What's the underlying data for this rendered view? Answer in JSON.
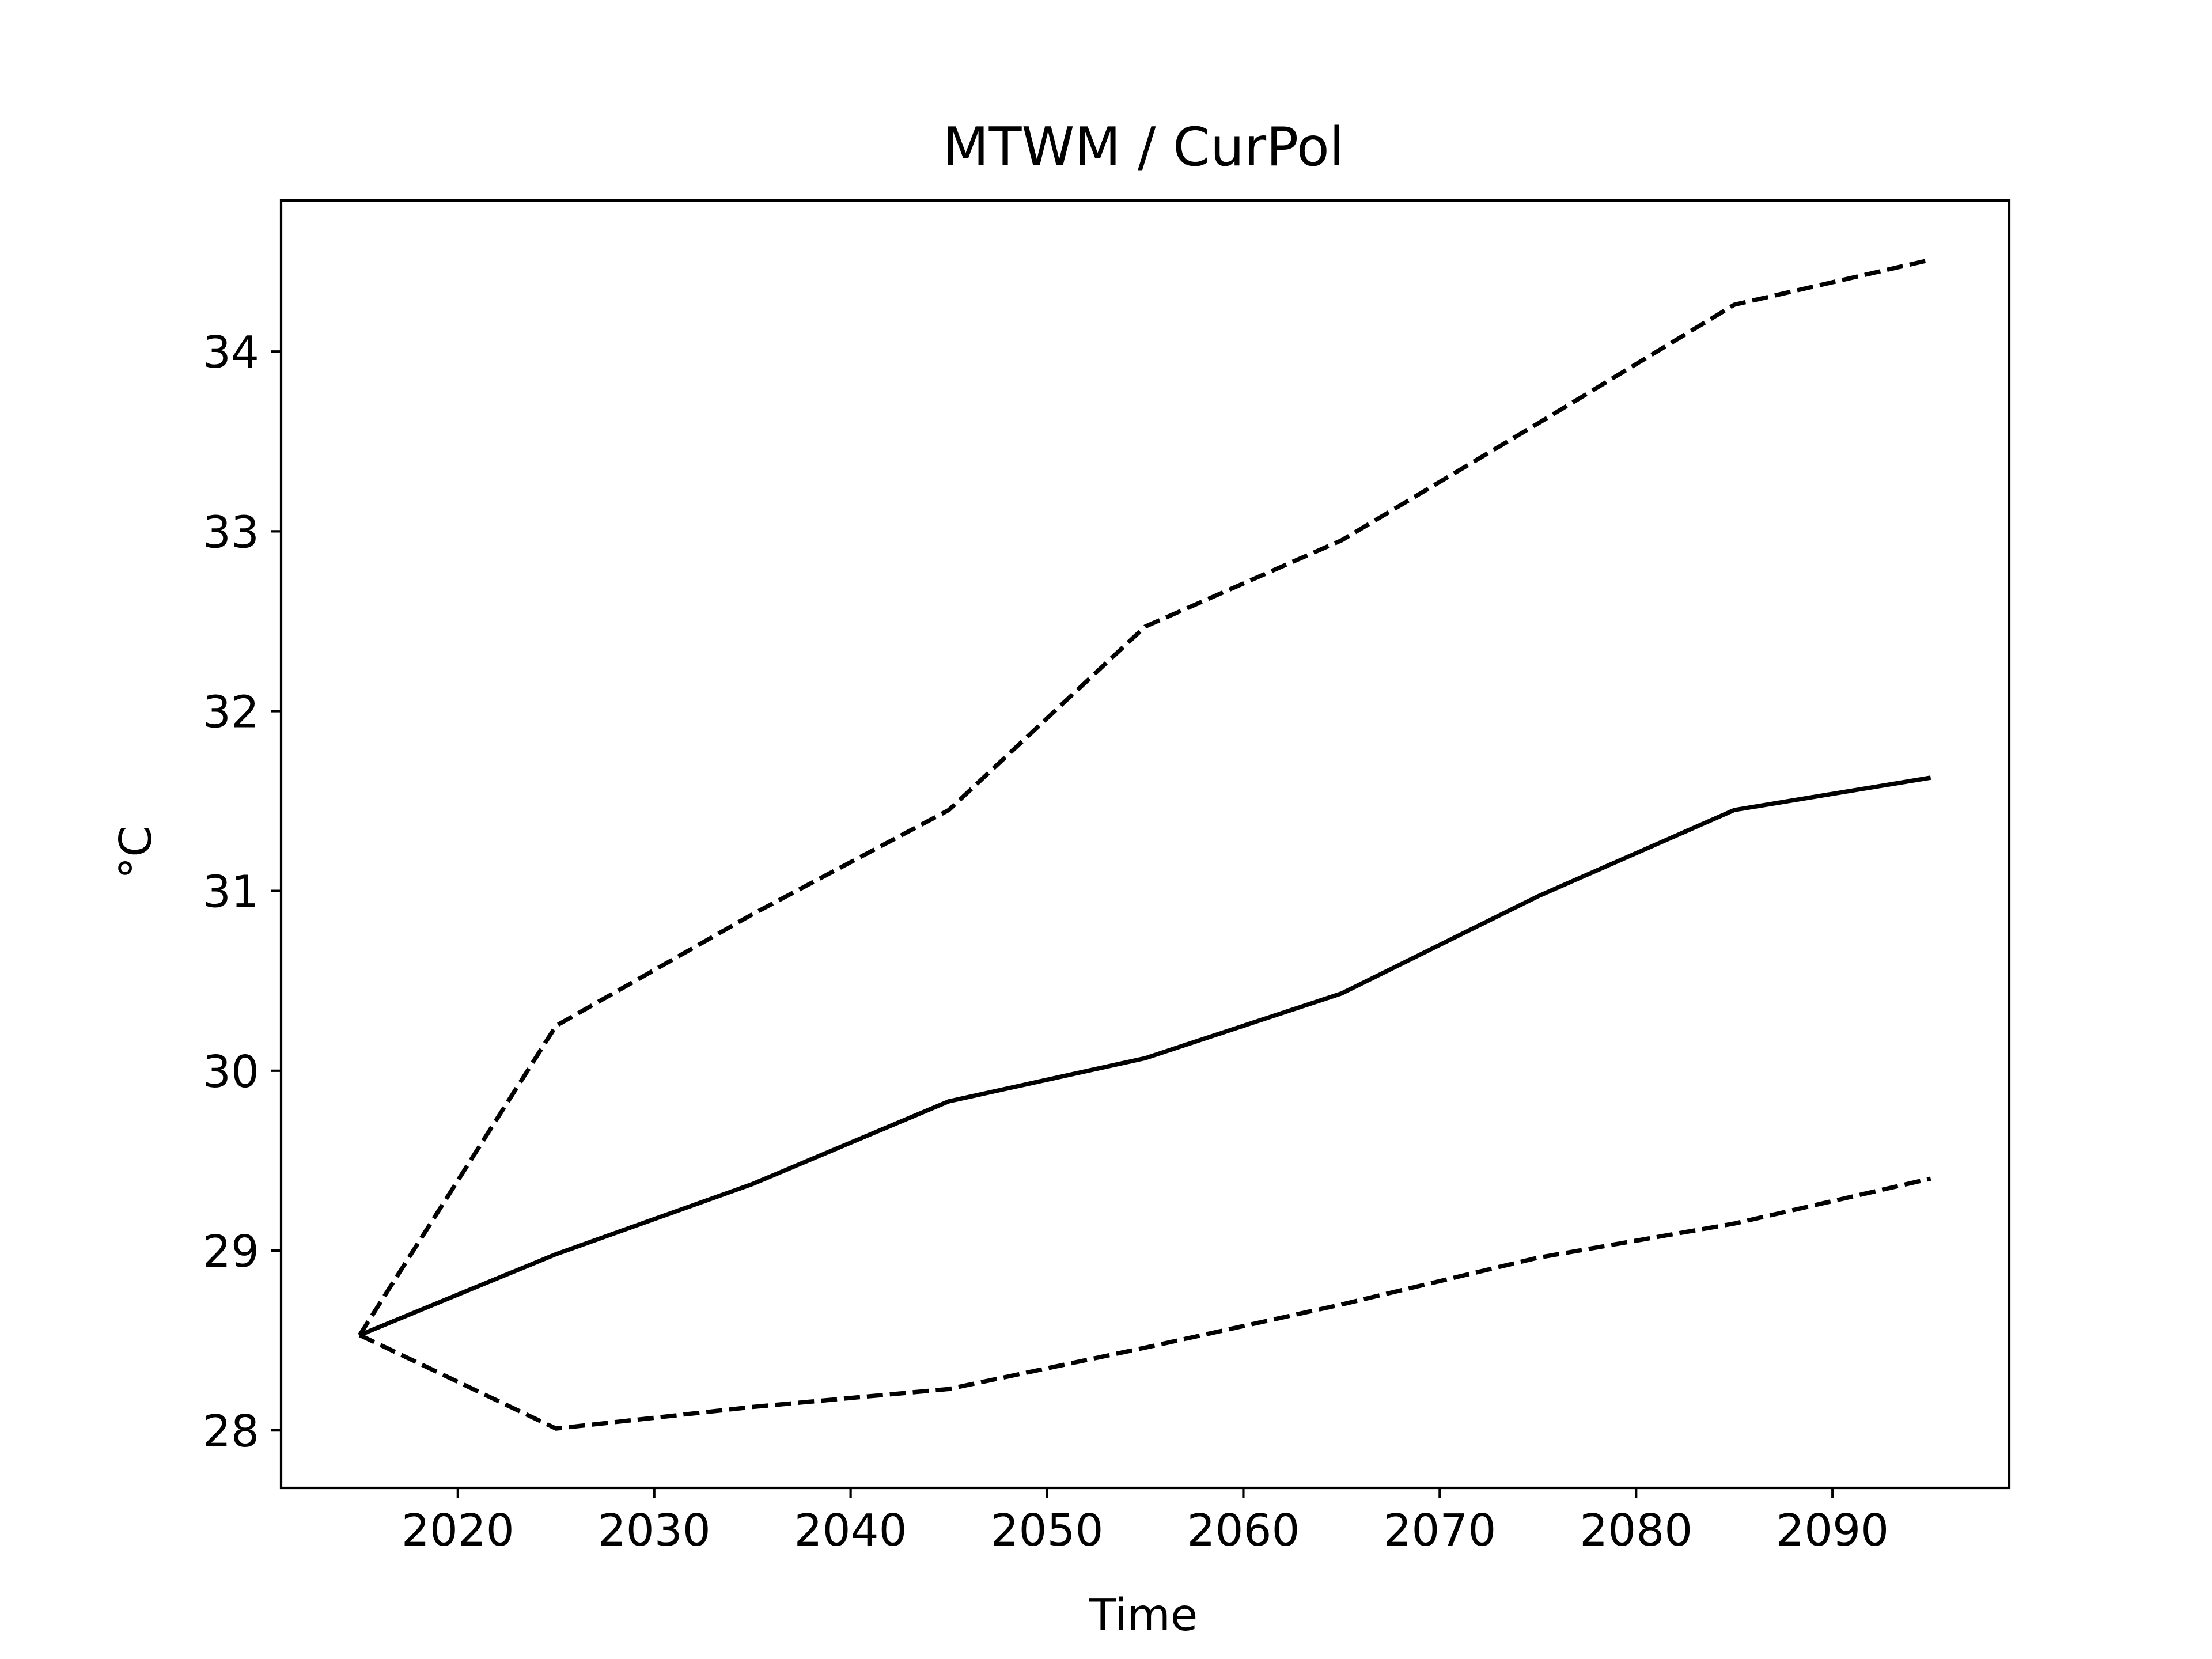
{
  "chart_data": {
    "type": "line",
    "title": "MTWM / CurPol",
    "xlabel": "Time",
    "ylabel": "°C",
    "xlim": [
      2011,
      2099
    ],
    "ylim": [
      27.68,
      34.84
    ],
    "xticks": [
      2020,
      2030,
      2040,
      2050,
      2060,
      2070,
      2080,
      2090
    ],
    "xtick_labels": [
      "2020",
      "2030",
      "2040",
      "2050",
      "2060",
      "2070",
      "2080",
      "2090"
    ],
    "yticks": [
      28,
      29,
      30,
      31,
      32,
      33,
      34
    ],
    "ytick_labels": [
      "28",
      "29",
      "30",
      "31",
      "32",
      "33",
      "34"
    ],
    "grid": false,
    "legend": false,
    "x": [
      2015,
      2025,
      2035,
      2045,
      2055,
      2065,
      2075,
      2085,
      2095
    ],
    "series": [
      {
        "style": "solid",
        "color": "#000000",
        "values": [
          28.53,
          28.98,
          29.37,
          29.83,
          30.07,
          30.43,
          30.97,
          31.45,
          31.63
        ]
      },
      {
        "style": "dashed",
        "color": "#000000",
        "values": [
          28.53,
          30.25,
          30.87,
          31.45,
          32.47,
          32.95,
          33.6,
          34.26,
          34.51
        ]
      },
      {
        "style": "dashed",
        "color": "#000000",
        "values": [
          28.53,
          28.01,
          28.13,
          28.23,
          28.46,
          28.7,
          28.96,
          29.15,
          29.4
        ]
      }
    ]
  }
}
